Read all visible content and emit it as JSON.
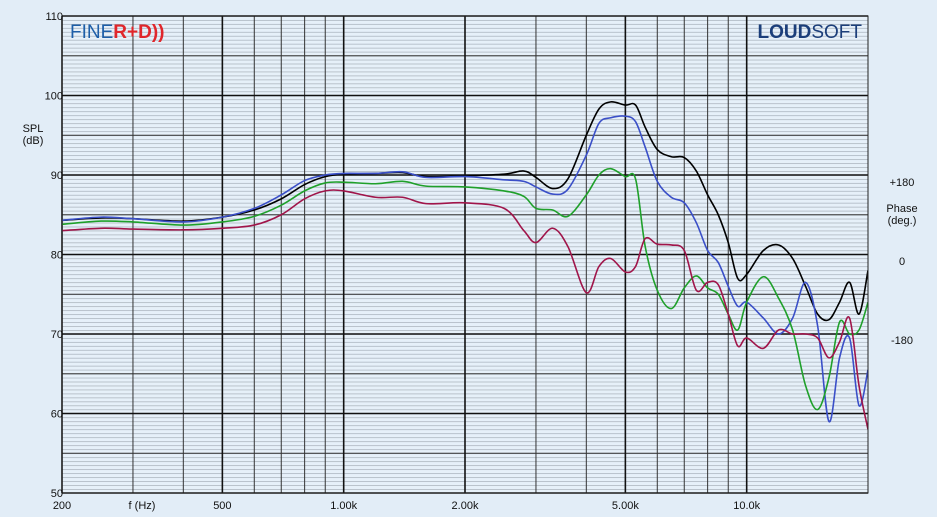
{
  "chart_data": {
    "type": "line",
    "brand_left": [
      "FINE",
      "R+D))"
    ],
    "brand_right": [
      "LOUD",
      "SOFT"
    ],
    "ylabel": [
      "SPL",
      "(dB)"
    ],
    "xlabel": "f (Hz)",
    "y2label": [
      "Phase",
      "(deg.)"
    ],
    "x_scale": "log",
    "xlim": [
      200,
      20000
    ],
    "xticks": [
      200,
      500,
      {
        "value": 1000,
        "label": "1.00k"
      },
      {
        "value": 2000,
        "label": "2.00k"
      },
      {
        "value": 5000,
        "label": "5.00k"
      },
      {
        "value": 10000,
        "label": "10.0k"
      }
    ],
    "xminorticks": [
      300,
      400,
      600,
      700,
      800,
      900,
      3000,
      4000,
      6000,
      7000,
      8000,
      9000,
      20000
    ],
    "ylim": [
      50,
      110
    ],
    "yticks": [
      50,
      60,
      70,
      80,
      90,
      100,
      110
    ],
    "yminorticks": [
      55,
      65,
      75,
      85,
      95,
      105
    ],
    "y2lim": [
      -526,
      560
    ],
    "y2ticks": [
      {
        "value": 180,
        "label": "+180"
      },
      0,
      -180
    ],
    "grid": true,
    "x": [
      200,
      250,
      300,
      400,
      500,
      600,
      700,
      800,
      900,
      1000,
      1200,
      1400,
      1600,
      2000,
      2500,
      2800,
      3000,
      3300,
      3600,
      4000,
      4300,
      4600,
      5000,
      5300,
      5600,
      6000,
      6500,
      7000,
      7500,
      8000,
      8500,
      9000,
      9500,
      10000,
      11000,
      12000,
      13000,
      14000,
      15000,
      16000,
      17000,
      18000,
      19000,
      20000
    ],
    "series": [
      {
        "color": "#000000",
        "values": [
          84.3,
          84.6,
          84.5,
          84.2,
          84.7,
          85.6,
          87,
          88.8,
          89.8,
          90.1,
          90.2,
          90.3,
          89.8,
          89.9,
          90.1,
          90.5,
          89.7,
          88.3,
          89.5,
          95,
          98.3,
          99.2,
          98.8,
          98.8,
          96,
          93.2,
          92.3,
          92.2,
          90.5,
          87.5,
          85,
          81.5,
          77,
          77.5,
          80.5,
          81.2,
          79.5,
          76,
          72.5,
          71.8,
          74,
          76.5,
          72.5,
          78
        ]
      },
      {
        "color": "#3a4fc8",
        "values": [
          84.3,
          84.7,
          84.5,
          84.1,
          84.7,
          85.8,
          87.5,
          89.3,
          90,
          90.2,
          90.2,
          90.4,
          89.7,
          89.8,
          89.4,
          89.2,
          88.5,
          87.6,
          88.2,
          92.5,
          96.5,
          97.2,
          97.4,
          96.7,
          93.5,
          89.2,
          87.2,
          86.5,
          84,
          80.5,
          79,
          76,
          73.5,
          74,
          72,
          70,
          72,
          76.5,
          71,
          59,
          67,
          69.5,
          61,
          65.5
        ]
      },
      {
        "color": "#1fa02a",
        "values": [
          83.8,
          84.2,
          84.1,
          83.7,
          84.1,
          84.8,
          86.2,
          88,
          89,
          89.1,
          88.9,
          89.2,
          88.6,
          88.5,
          88,
          87.3,
          85.8,
          85.6,
          84.8,
          87.5,
          90,
          90.8,
          89.8,
          89.5,
          81,
          75.5,
          73.2,
          75.8,
          77.3,
          75.8,
          75,
          72.5,
          70.5,
          74,
          77.2,
          74.5,
          70.5,
          63.5,
          60.5,
          64.5,
          71.5,
          70,
          70.5,
          74
        ]
      },
      {
        "color": "#a0154a",
        "values": [
          83,
          83.3,
          83.2,
          83.1,
          83.3,
          83.7,
          85,
          87,
          88,
          88,
          87.2,
          87.2,
          86.4,
          86.5,
          85.8,
          83,
          81.5,
          83.3,
          81,
          75.2,
          78.5,
          79.5,
          77.8,
          78.5,
          82,
          81.3,
          81.2,
          80.5,
          75.5,
          76.5,
          76.2,
          72.5,
          68.5,
          69.5,
          68.2,
          70.5,
          70,
          70,
          69.5,
          67,
          69,
          72,
          63.5,
          58
        ]
      }
    ]
  }
}
